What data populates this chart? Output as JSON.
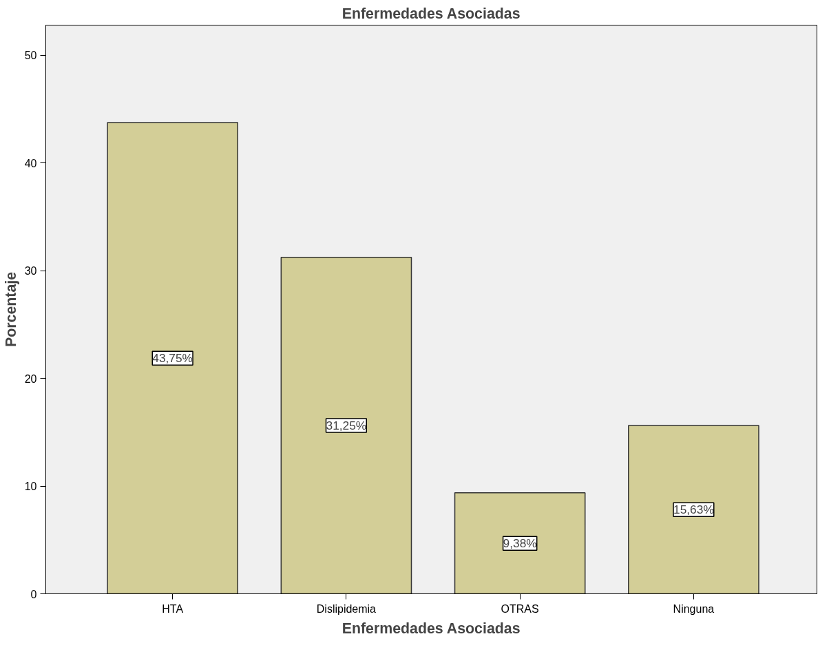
{
  "chart_data": {
    "type": "bar",
    "title": "Enfermedades Asociadas",
    "xlabel": "Enfermedades Asociadas",
    "ylabel": "Porcentaje",
    "categories": [
      "HTA",
      "Dislipidemia",
      "OTRAS",
      "Ninguna"
    ],
    "values": [
      43.75,
      31.25,
      9.38,
      15.63
    ],
    "value_labels": [
      "43,75%",
      "31,25%",
      "9,38%",
      "15,63%"
    ],
    "color": "#d3ce97",
    "ylim": [
      0,
      52.8
    ],
    "yticks": [
      0,
      10,
      20,
      30,
      40,
      50
    ],
    "grid": false
  }
}
